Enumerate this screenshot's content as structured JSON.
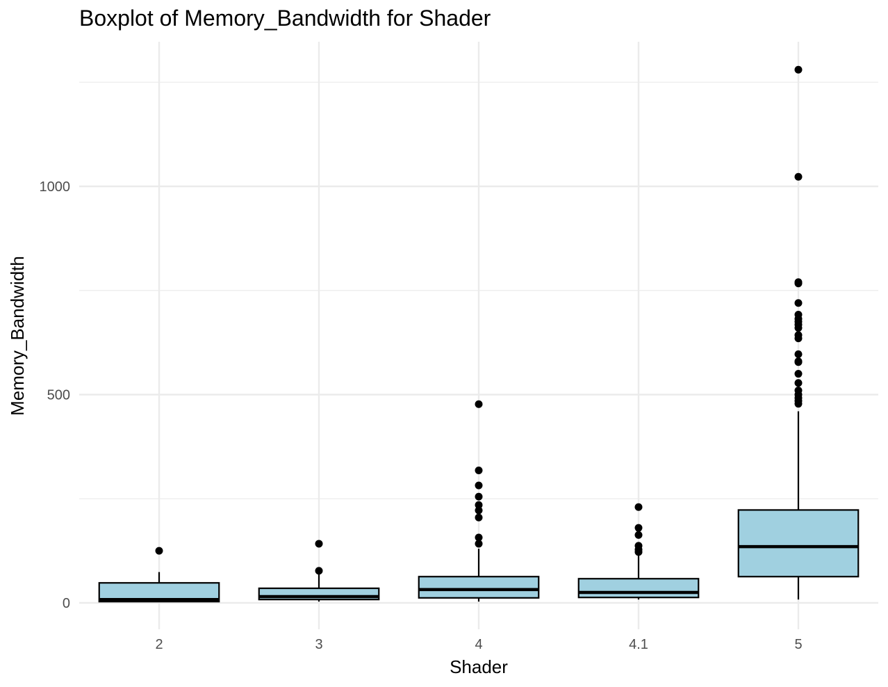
{
  "chart_data": {
    "type": "boxplot",
    "title": "Boxplot of Memory_Bandwidth for Shader",
    "xlabel": "Shader",
    "ylabel": "Memory_Bandwidth",
    "categories": [
      "2",
      "3",
      "4",
      "4.1",
      "5"
    ],
    "y_ticks": [
      0,
      500,
      1000
    ],
    "ylim": [
      -55,
      1285
    ],
    "grid": true,
    "fill_color": "#a0d0e0",
    "grid_color": "#ebebeb",
    "boxes": [
      {
        "category": "2",
        "whisker_low": 2,
        "q1": 3,
        "median": 8,
        "q3": 48,
        "whisker_high": 74,
        "outliers": [
          125
        ]
      },
      {
        "category": "3",
        "whisker_low": 3,
        "q1": 8,
        "median": 15,
        "q3": 35,
        "whisker_high": 70,
        "outliers": [
          77,
          142
        ]
      },
      {
        "category": "4",
        "whisker_low": 3,
        "q1": 12,
        "median": 32,
        "q3": 63,
        "whisker_high": 130,
        "outliers": [
          142,
          157,
          205,
          222,
          235,
          255,
          282,
          318,
          477
        ]
      },
      {
        "category": "4.1",
        "whisker_low": 8,
        "q1": 13,
        "median": 25,
        "q3": 58,
        "whisker_high": 115,
        "outliers": [
          122,
          128,
          137,
          163,
          180,
          230
        ]
      },
      {
        "category": "5",
        "whisker_low": 8,
        "q1": 63,
        "median": 135,
        "q3": 223,
        "whisker_high": 460,
        "outliers": [
          478,
          485,
          492,
          500,
          510,
          528,
          550,
          578,
          580,
          597,
          635,
          643,
          660,
          668,
          675,
          682,
          692,
          720,
          767,
          770,
          1023,
          1280
        ]
      }
    ]
  }
}
